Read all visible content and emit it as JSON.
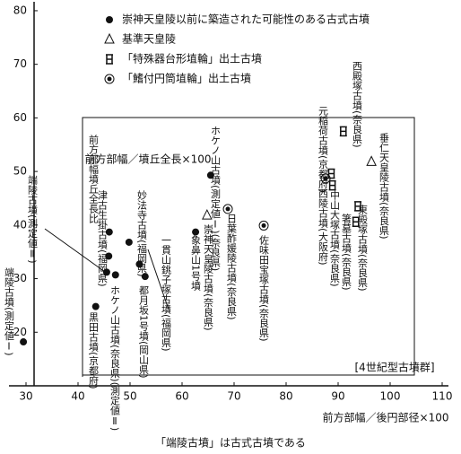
{
  "chart_data": {
    "type": "scatter",
    "y_label": "前方部幅／墳丘全長×100",
    "x_label": "前方部幅／後円部径×100",
    "caption": "「端陵古墳」は古式古墳である",
    "frame_label": "[4世紀型古墳群]",
    "xlim": [
      25,
      112
    ],
    "ylim": [
      10,
      82
    ],
    "xticks": [
      30,
      40,
      50,
      60,
      70,
      80,
      90,
      100,
      110
    ],
    "yticks": [
      20,
      30,
      40,
      50,
      60,
      70,
      80
    ],
    "series": [
      {
        "name": "崇神天皇陵以前に築造された可能性のある古式古墳",
        "marker": "circle",
        "color": "#111",
        "x": [
          29.5,
          43.4,
          45.5,
          45.9,
          46,
          47.2,
          51.8,
          52.9,
          49.8,
          62.6,
          65.5
        ],
        "values": [
          18.2,
          24.8,
          31.2,
          34.2,
          38.7,
          30.7,
          32.7,
          30.4,
          36.8,
          38.7,
          49.3
        ]
      },
      {
        "name": "基準天皇陵",
        "marker": "triangle",
        "color": "#111",
        "x": [
          64.8,
          96.4
        ],
        "values": [
          41.8,
          51.8
        ]
      },
      {
        "name": "「特殊器台形埴輪」出土古墳",
        "marker": "cylinder",
        "color": "#111",
        "x": [
          91,
          88.7,
          88.9,
          93.4,
          93.8
        ],
        "values": [
          57.5,
          49.6,
          47.4,
          40.6,
          43.5
        ]
      },
      {
        "name": "「鰭付円筒埴輪」出土古墳",
        "marker": "ring",
        "color": "#111",
        "x": [
          68.8,
          75.7,
          87.6
        ],
        "values": [
          43,
          39.9,
          48.7
        ]
      }
    ],
    "annotations": [
      "端陵古墳(測定値Ⅰ)",
      "端陵古墳(測定値Ⅱ)",
      "前方部幅墳丘全長比",
      "津古生掛古墳(福岡県)",
      "妙法寺古墳(福岡県)",
      "ホケノ山古墳(奈良県)(測定値Ⅱ)",
      "黒田古墳(京都府)",
      "都月坂1号墳(岡山県)",
      "一貫山銚子塚古墳(福岡県)",
      "象鼻山1号墳",
      "ホケノ山古墳(測定値Ⅰ)(奈良県)",
      "崇神天皇陵古墳(奈良県)",
      "日葉酢媛陵古墳(奈良県)",
      "佐味田宝塚古墳(奈良県)",
      "元稲荷古墳(京都府)",
      "西殿塚古墳(奈良県)",
      "西陵古墳(大阪府)",
      "箸墓古墳(奈良県)",
      "中山大塚古墳(奈良県)",
      "東殿塚古墳(奈良県)",
      "垂仁天皇陵古墳(奈良県)"
    ]
  }
}
